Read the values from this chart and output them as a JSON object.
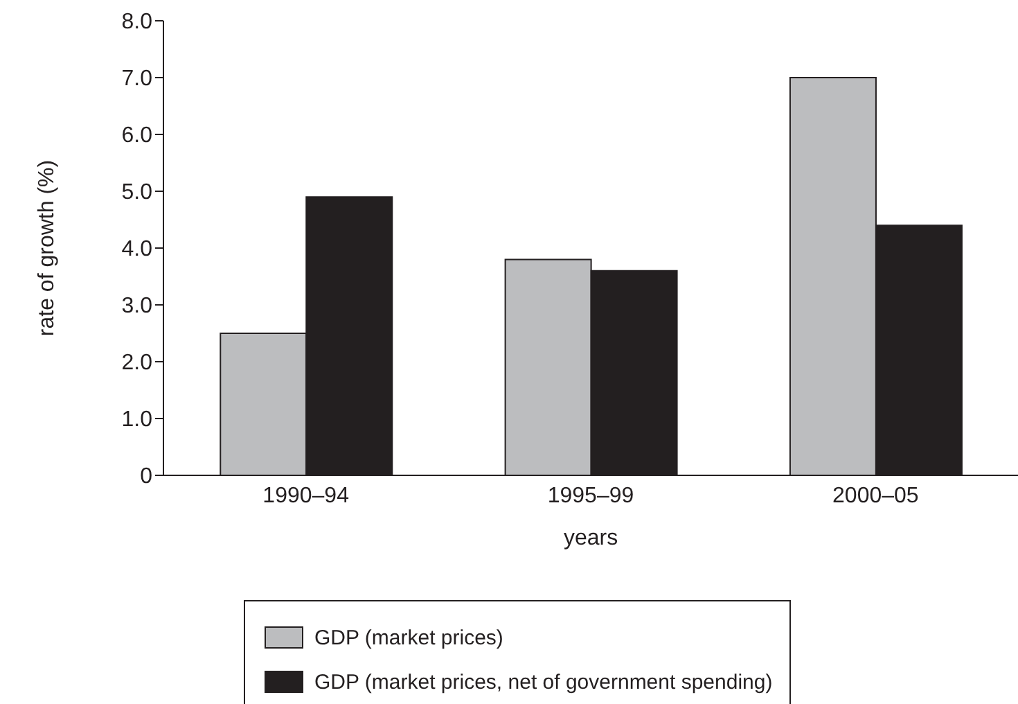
{
  "chart_data": {
    "type": "bar",
    "xlabel": "years",
    "ylabel": "rate of growth (%)",
    "categories": [
      "1990–94",
      "1995–99",
      "2000–05"
    ],
    "series": [
      {
        "name": "GDP (market prices)",
        "color": "#bcbdbf",
        "values": [
          2.5,
          3.8,
          7.0
        ]
      },
      {
        "name": "GDP (market prices, net of government spending)",
        "color": "#231f20",
        "values": [
          4.9,
          3.6,
          4.4
        ]
      }
    ],
    "ylim": [
      0,
      8
    ],
    "yticks": [
      {
        "value": 0,
        "label": "0"
      },
      {
        "value": 1,
        "label": "1.0"
      },
      {
        "value": 2,
        "label": "2.0"
      },
      {
        "value": 3,
        "label": "3.0"
      },
      {
        "value": 4,
        "label": "4.0"
      },
      {
        "value": 5,
        "label": "5.0"
      },
      {
        "value": 6,
        "label": "6.0"
      },
      {
        "value": 7,
        "label": "7.0"
      },
      {
        "value": 8,
        "label": "8.0"
      }
    ],
    "grid": false,
    "legend": "bottom"
  }
}
